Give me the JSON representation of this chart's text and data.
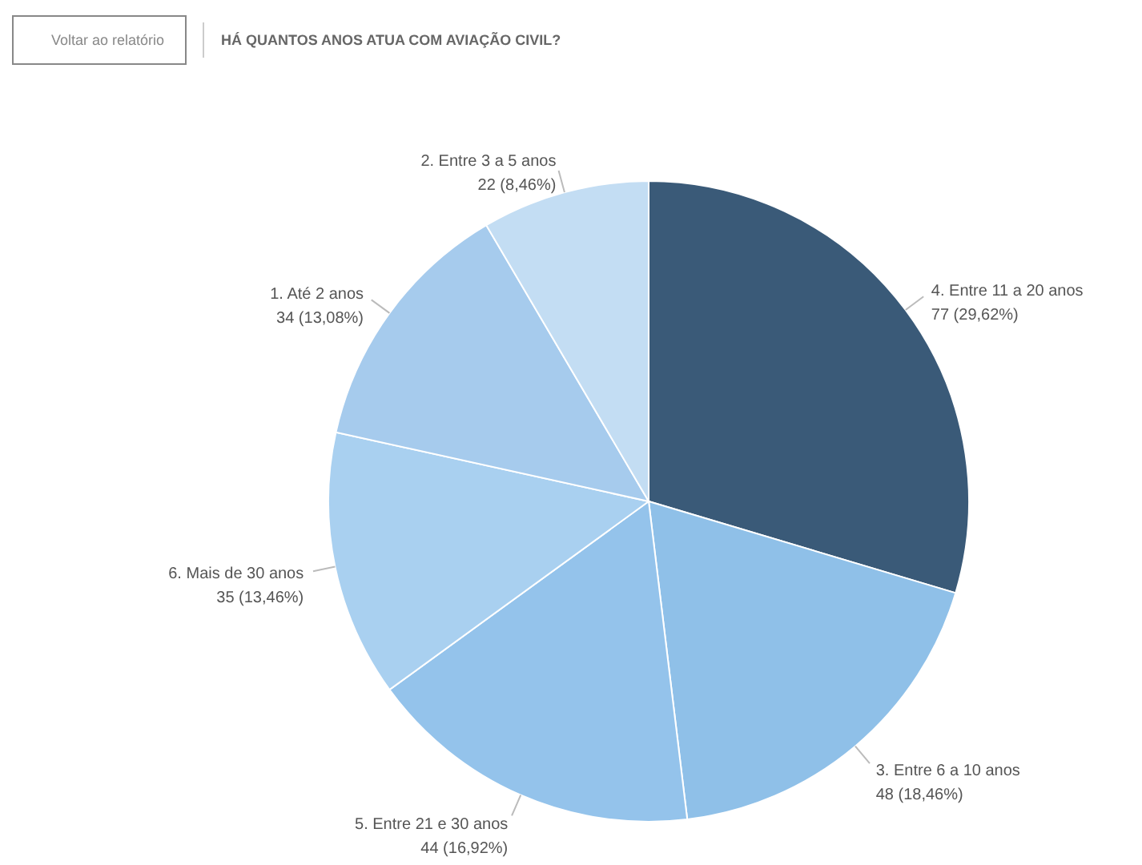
{
  "chart_data": {
    "type": "pie",
    "title": "HÁ QUANTOS ANOS ATUA COM AVIAÇÃO CIVIL?",
    "annotations": [
      "Voltar ao relatório"
    ],
    "categories": [
      "4. Entre 11 a 20 anos",
      "3. Entre 6 a 10 anos",
      "5. Entre 21 e 30 anos",
      "6. Mais de 30 anos",
      "1. Até 2 anos",
      "2. Entre 3 a 5 anos"
    ],
    "values": [
      77,
      48,
      44,
      35,
      34,
      22
    ],
    "value_labels": [
      "77 (29,62%)",
      "48 (18,46%)",
      "44 (16,92%)",
      "35 (13,46%)",
      "34 (13,08%)",
      "22 (8,46%)"
    ],
    "colors": [
      "#3a5a78",
      "#8fc0e8",
      "#94c3eb",
      "#a9d0f0",
      "#a6cbed",
      "#c3ddf3"
    ]
  }
}
